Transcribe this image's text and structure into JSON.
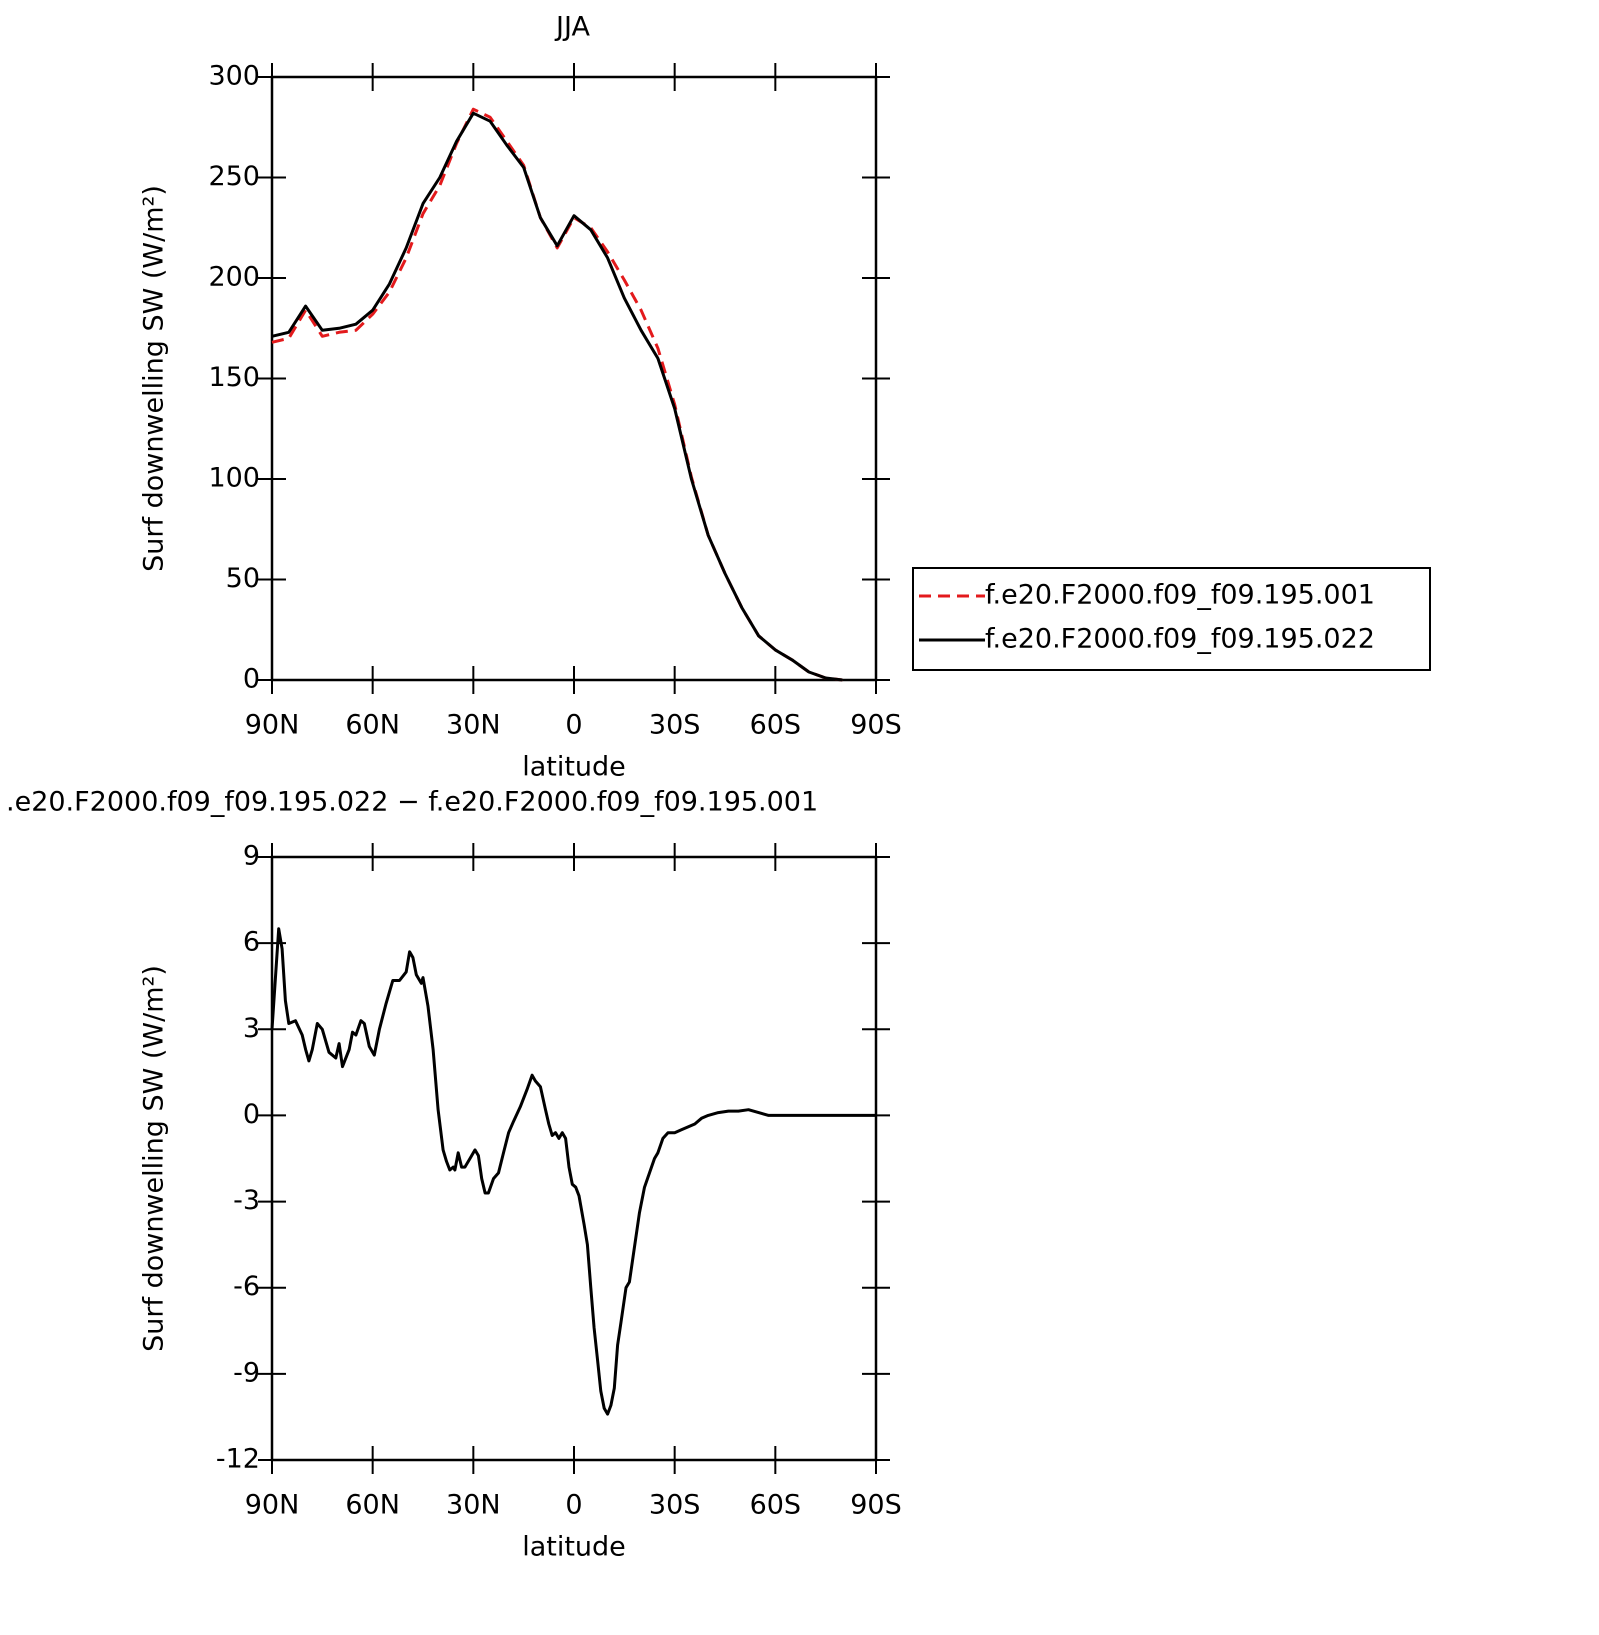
{
  "chart_data": [
    {
      "type": "line",
      "title": "JJA",
      "xlabel": "latitude",
      "ylabel": "Surf downwelling SW (W/m²)",
      "x": [
        90,
        85,
        80,
        75,
        70,
        65,
        60,
        55,
        50,
        45,
        40,
        35,
        30,
        25,
        20,
        15,
        10,
        5,
        0,
        -5,
        -10,
        -15,
        -20,
        -25,
        -30,
        -35,
        -40,
        -45,
        -50,
        -55,
        -60,
        -65,
        -70,
        -75,
        -80,
        -85,
        -90
      ],
      "series": [
        {
          "name": "f.e20.F2000.f09_f09.195.001",
          "color": "#e31a1c",
          "dash": true,
          "values": [
            168,
            170,
            184,
            171,
            173,
            174,
            182,
            193,
            210,
            232,
            246,
            267,
            284,
            280,
            268,
            256,
            230,
            215,
            230,
            225,
            213,
            199,
            184,
            165,
            137,
            101,
            72,
            53,
            36,
            22,
            15,
            10,
            4,
            1,
            0,
            null,
            null
          ]
        },
        {
          "name": "f.e20.F2000.f09_f09.195.022",
          "color": "#000000",
          "dash": false,
          "values": [
            171,
            173,
            186,
            174,
            175,
            177,
            184,
            197,
            215,
            237,
            250,
            268,
            282,
            278,
            266,
            255,
            230,
            216,
            231,
            224,
            210,
            190,
            174,
            160,
            135,
            100,
            72,
            53,
            36,
            22,
            15,
            10,
            4,
            1,
            0,
            null,
            null
          ]
        }
      ],
      "xlim": [
        90,
        -90
      ],
      "xticks": [
        {
          "value": 90,
          "label": "90N"
        },
        {
          "value": 60,
          "label": "60N"
        },
        {
          "value": 30,
          "label": "30N"
        },
        0,
        {
          "value": -30,
          "label": "30S"
        },
        {
          "value": -60,
          "label": "60S"
        },
        {
          "value": -90,
          "label": "90S"
        }
      ],
      "ylim": [
        0,
        300
      ],
      "yticks": [
        0,
        50,
        100,
        150,
        200,
        250,
        300
      ],
      "legend": "right"
    },
    {
      "type": "line",
      "title": ".e20.F2000.f09_f09.195.022 − f.e20.F2000.f09_f09.195.001",
      "xlabel": "latitude",
      "ylabel": "Surf downwelling SW (W/m²)",
      "x": [
        90,
        88,
        87,
        86,
        85,
        83,
        81,
        80,
        79,
        78,
        76.5,
        75,
        73,
        71,
        70,
        69,
        67,
        66,
        65,
        63.5,
        62.5,
        61,
        59.5,
        58,
        56,
        54,
        52,
        50,
        49,
        48,
        47,
        45.5,
        45,
        43.5,
        42,
        40.5,
        39,
        38,
        37,
        36,
        35.5,
        34.5,
        33.5,
        32.5,
        31,
        29.5,
        28.5,
        27.5,
        26.5,
        25.5,
        24,
        22.5,
        21,
        19.5,
        18,
        16,
        14,
        12.5,
        11.5,
        10,
        8.5,
        7.5,
        6.5,
        5.5,
        4.5,
        3.5,
        2.5,
        1.5,
        0.5,
        -0.5,
        -1.5,
        -3,
        -4,
        -5,
        -6,
        -7,
        -8,
        -9,
        -10,
        -11,
        -12,
        -13,
        -14,
        -15.5,
        -16.5,
        -18,
        -19.5,
        -21,
        -22.5,
        -24,
        -25,
        -26.5,
        -28,
        -30,
        -32,
        -34,
        -36,
        -38,
        -40,
        -43,
        -46,
        -49,
        -52,
        -55,
        -58,
        -62,
        -70,
        -80,
        -90
      ],
      "series": [
        {
          "color": "#000000",
          "dash": false,
          "values": [
            3.0,
            6.5,
            5.8,
            4.0,
            3.2,
            3.3,
            2.8,
            2.3,
            1.9,
            2.3,
            3.2,
            3.0,
            2.2,
            2.0,
            2.5,
            1.7,
            2.3,
            2.9,
            2.8,
            3.3,
            3.2,
            2.4,
            2.1,
            3.0,
            3.9,
            4.7,
            4.7,
            5.0,
            5.7,
            5.5,
            4.9,
            4.6,
            4.8,
            3.8,
            2.3,
            0.2,
            -1.2,
            -1.6,
            -1.9,
            -1.8,
            -1.9,
            -1.3,
            -1.8,
            -1.8,
            -1.5,
            -1.2,
            -1.4,
            -2.2,
            -2.7,
            -2.7,
            -2.2,
            -2.0,
            -1.3,
            -0.6,
            -0.2,
            0.3,
            0.9,
            1.4,
            1.2,
            1.0,
            0.2,
            -0.3,
            -0.7,
            -0.6,
            -0.8,
            -0.6,
            -0.8,
            -1.8,
            -2.4,
            -2.5,
            -2.8,
            -3.8,
            -4.5,
            -6.0,
            -7.4,
            -8.5,
            -9.6,
            -10.2,
            -10.4,
            -10.1,
            -9.5,
            -8.0,
            -7.2,
            -6.0,
            -5.8,
            -4.6,
            -3.4,
            -2.5,
            -2.0,
            -1.5,
            -1.3,
            -0.8,
            -0.6,
            -0.6,
            -0.5,
            -0.4,
            -0.3,
            -0.1,
            0.0,
            0.1,
            0.15,
            0.15,
            0.2,
            0.1,
            0.0,
            0.0,
            0.0,
            0.0,
            0.0
          ]
        }
      ],
      "xlim": [
        90,
        -90
      ],
      "xticks": [
        {
          "value": 90,
          "label": "90N"
        },
        {
          "value": 60,
          "label": "60N"
        },
        {
          "value": 30,
          "label": "30N"
        },
        0,
        {
          "value": -30,
          "label": "30S"
        },
        {
          "value": -60,
          "label": "60S"
        },
        {
          "value": -90,
          "label": "90S"
        }
      ],
      "ylim": [
        -12,
        9
      ],
      "yticks": [
        -12,
        -9,
        -6,
        -3,
        0,
        3,
        6,
        9
      ]
    }
  ]
}
